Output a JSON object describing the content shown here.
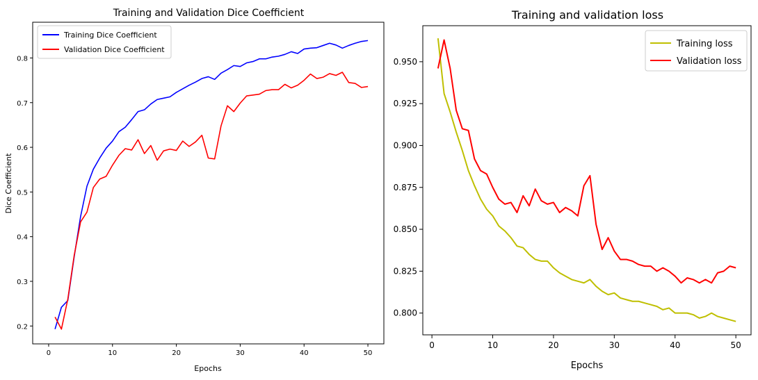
{
  "chart_data": [
    {
      "type": "line",
      "title": "Training and Validation Dice Coefficient",
      "xlabel": "Epochs",
      "ylabel": "Dice Coefficient",
      "xlim": [
        -2.5,
        52.5
      ],
      "ylim": [
        0.16,
        0.88
      ],
      "xticks": [
        "0",
        "10",
        "20",
        "30",
        "40",
        "50"
      ],
      "yticks": [
        "0.2",
        "0.3",
        "0.4",
        "0.5",
        "0.6",
        "0.7",
        "0.8"
      ],
      "grid": false,
      "legend_position": "upper-left",
      "x": [
        1,
        2,
        3,
        4,
        5,
        6,
        7,
        8,
        9,
        10,
        11,
        12,
        13,
        14,
        15,
        16,
        17,
        18,
        19,
        20,
        21,
        22,
        23,
        24,
        25,
        26,
        27,
        28,
        29,
        30,
        31,
        32,
        33,
        34,
        35,
        36,
        37,
        38,
        39,
        40,
        41,
        42,
        43,
        44,
        45,
        46,
        47,
        48,
        49,
        50
      ],
      "series": [
        {
          "name": "Training Dice Coefficient",
          "color": "#0000ff",
          "values": [
            0.193,
            0.242,
            0.257,
            0.355,
            0.445,
            0.513,
            0.551,
            0.576,
            0.598,
            0.614,
            0.635,
            0.645,
            0.662,
            0.68,
            0.684,
            0.697,
            0.707,
            0.71,
            0.713,
            0.723,
            0.731,
            0.739,
            0.746,
            0.754,
            0.758,
            0.752,
            0.766,
            0.774,
            0.783,
            0.781,
            0.789,
            0.792,
            0.798,
            0.798,
            0.802,
            0.804,
            0.808,
            0.814,
            0.81,
            0.82,
            0.822,
            0.823,
            0.828,
            0.833,
            0.829,
            0.822,
            0.828,
            0.833,
            0.837,
            0.839
          ]
        },
        {
          "name": "Validation Dice Coefficient",
          "color": "#ff0000",
          "values": [
            0.22,
            0.193,
            0.26,
            0.358,
            0.433,
            0.455,
            0.51,
            0.529,
            0.535,
            0.56,
            0.582,
            0.597,
            0.594,
            0.617,
            0.586,
            0.604,
            0.571,
            0.592,
            0.596,
            0.593,
            0.614,
            0.602,
            0.612,
            0.627,
            0.576,
            0.574,
            0.648,
            0.693,
            0.68,
            0.699,
            0.715,
            0.717,
            0.719,
            0.727,
            0.729,
            0.729,
            0.741,
            0.733,
            0.739,
            0.75,
            0.764,
            0.754,
            0.757,
            0.765,
            0.761,
            0.768,
            0.745,
            0.743,
            0.734,
            0.736
          ]
        }
      ]
    },
    {
      "type": "line",
      "title": "Training and validation loss",
      "xlabel": "Epochs",
      "ylabel": "",
      "xlim": [
        -1.5,
        52.5
      ],
      "ylim": [
        0.787,
        0.9715
      ],
      "xticks": [
        "0",
        "10",
        "20",
        "30",
        "40",
        "50"
      ],
      "yticks": [
        "0.800",
        "0.825",
        "0.850",
        "0.875",
        "0.900",
        "0.925",
        "0.950"
      ],
      "grid": false,
      "legend_position": "upper-right",
      "x": [
        1,
        2,
        3,
        4,
        5,
        6,
        7,
        8,
        9,
        10,
        11,
        12,
        13,
        14,
        15,
        16,
        17,
        18,
        19,
        20,
        21,
        22,
        23,
        24,
        25,
        26,
        27,
        28,
        29,
        30,
        31,
        32,
        33,
        34,
        35,
        36,
        37,
        38,
        39,
        40,
        41,
        42,
        43,
        44,
        45,
        46,
        47,
        48,
        49,
        50
      ],
      "series": [
        {
          "name": "Training loss",
          "color": "#bfbf00",
          "values": [
            0.964,
            0.931,
            0.92,
            0.908,
            0.897,
            0.885,
            0.876,
            0.868,
            0.862,
            0.858,
            0.852,
            0.849,
            0.845,
            0.84,
            0.839,
            0.835,
            0.832,
            0.831,
            0.831,
            0.827,
            0.824,
            0.822,
            0.82,
            0.819,
            0.818,
            0.82,
            0.816,
            0.813,
            0.811,
            0.812,
            0.809,
            0.808,
            0.807,
            0.807,
            0.806,
            0.805,
            0.804,
            0.802,
            0.803,
            0.8,
            0.8,
            0.8,
            0.799,
            0.797,
            0.798,
            0.8,
            0.798,
            0.797,
            0.796,
            0.795
          ]
        },
        {
          "name": "Validation loss",
          "color": "#ff0000",
          "values": [
            0.946,
            0.963,
            0.946,
            0.921,
            0.91,
            0.909,
            0.892,
            0.885,
            0.883,
            0.875,
            0.868,
            0.865,
            0.866,
            0.86,
            0.87,
            0.864,
            0.874,
            0.867,
            0.865,
            0.866,
            0.86,
            0.863,
            0.861,
            0.858,
            0.876,
            0.882,
            0.853,
            0.838,
            0.845,
            0.837,
            0.832,
            0.832,
            0.831,
            0.829,
            0.828,
            0.828,
            0.825,
            0.827,
            0.825,
            0.822,
            0.818,
            0.821,
            0.82,
            0.818,
            0.82,
            0.818,
            0.824,
            0.825,
            0.828,
            0.827
          ]
        }
      ]
    }
  ]
}
